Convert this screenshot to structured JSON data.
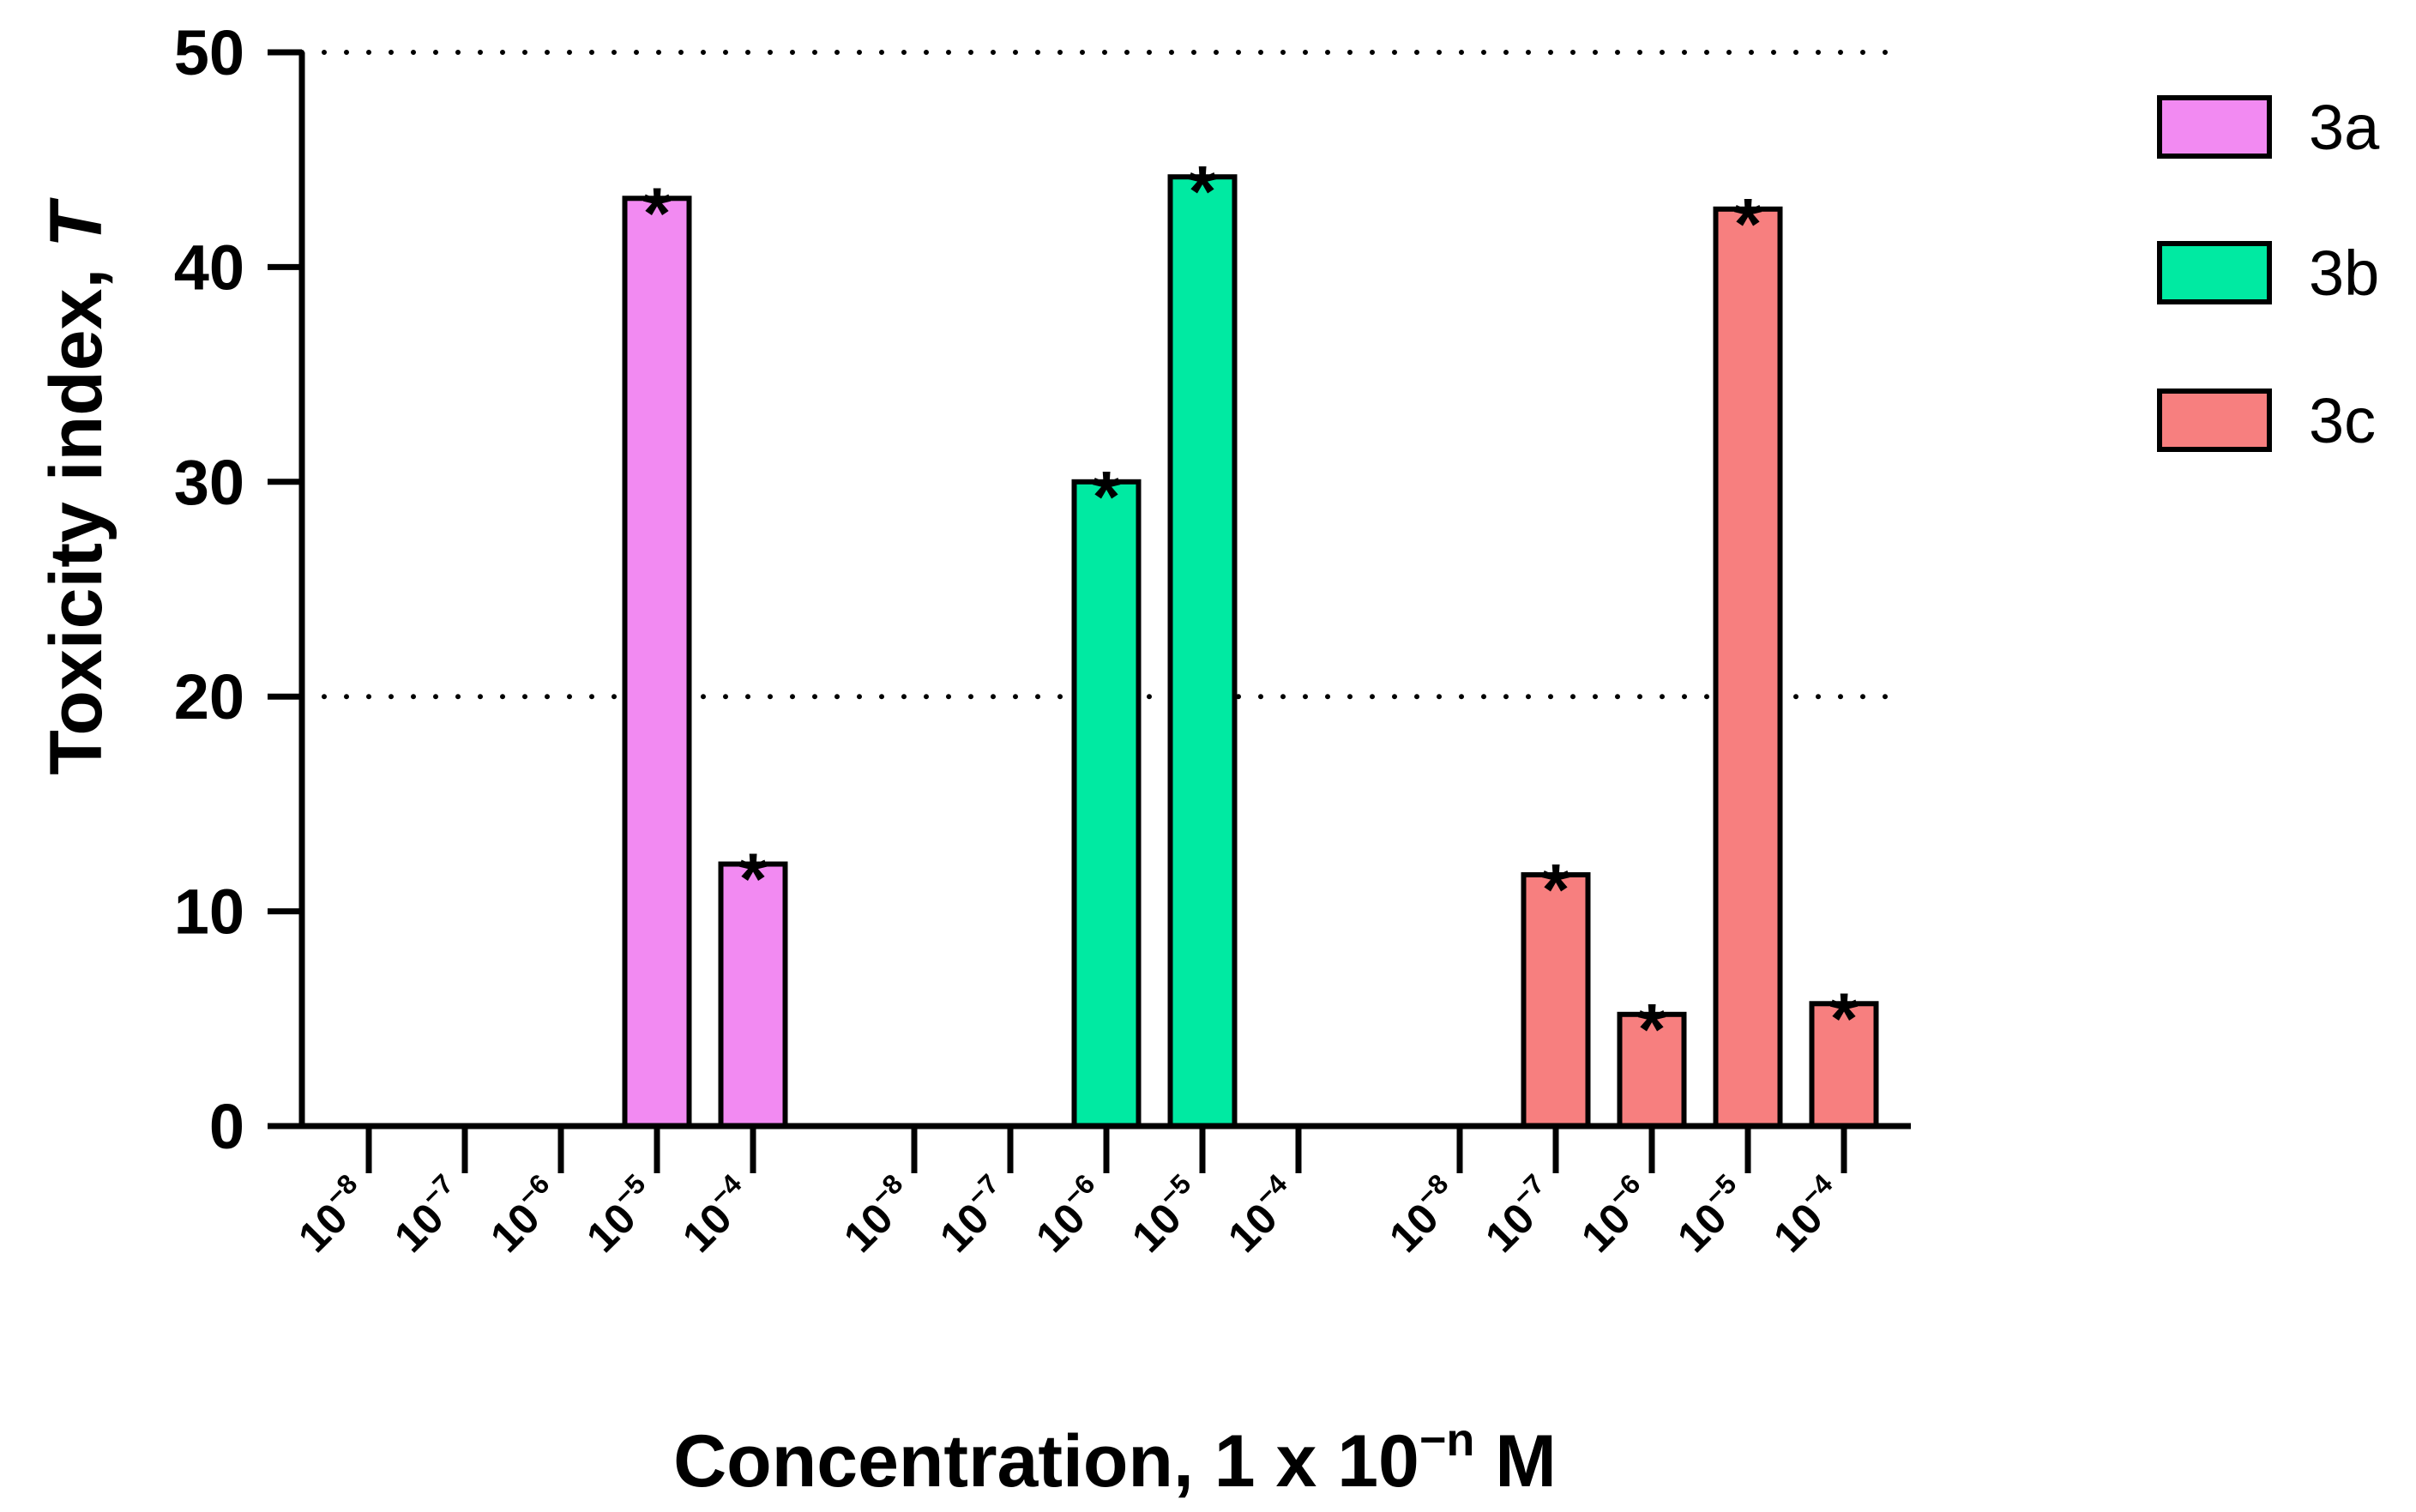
{
  "chart_data": {
    "type": "bar",
    "ylabel": "Toxicity index, ",
    "ylabel_var": "T",
    "xlabel_main": "Concentration, 1 x 10",
    "xlabel_sup": "−n",
    "xlabel_unit": " M",
    "ylim": [
      0,
      50
    ],
    "yticks": [
      "0",
      "10",
      "20",
      "30",
      "40",
      "50"
    ],
    "reference_lines": [
      20,
      50
    ],
    "tick_base": "10",
    "categories": [
      "−8",
      "−7",
      "−6",
      "−5",
      "−4"
    ],
    "significance_mark": "*",
    "series": [
      {
        "name": "3a",
        "color": "#f28af2",
        "values": [
          0,
          0,
          0,
          43.2,
          12.2
        ],
        "significant": [
          false,
          false,
          false,
          true,
          true
        ]
      },
      {
        "name": "3b",
        "color": "#00eaa2",
        "values": [
          0,
          0,
          30.0,
          44.2,
          0
        ],
        "significant": [
          false,
          false,
          true,
          true,
          false
        ]
      },
      {
        "name": "3c",
        "color": "#f77f7f",
        "values": [
          0,
          11.7,
          5.2,
          42.7,
          5.7
        ],
        "significant": [
          false,
          true,
          true,
          true,
          true
        ]
      }
    ]
  }
}
